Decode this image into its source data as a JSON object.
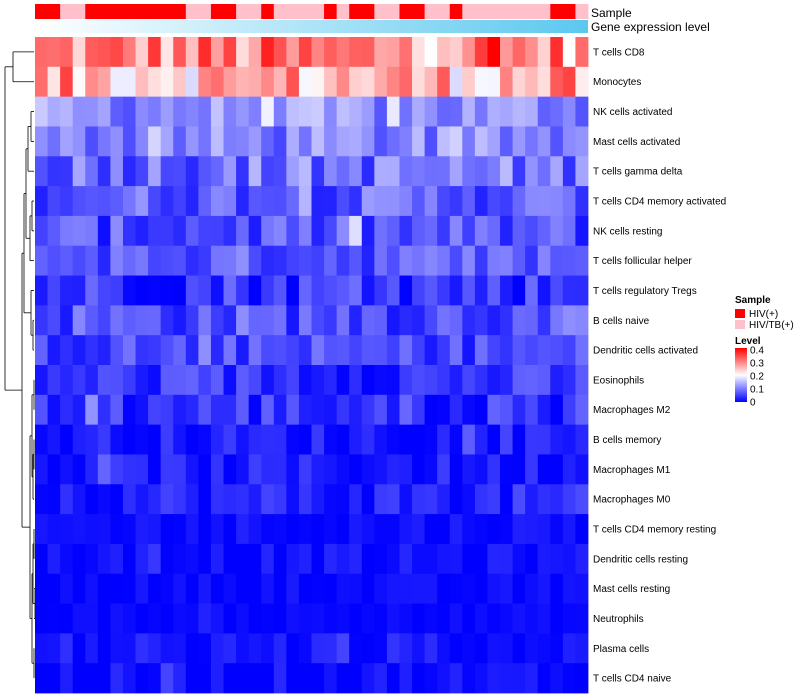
{
  "chart_data": {
    "type": "heatmap",
    "annotation_titles": {
      "sample": "Sample",
      "expression": "Gene expression level"
    },
    "rows": [
      "T cells CD8",
      "Monocytes",
      "NK cells activated",
      "Mast cells activated",
      "T cells gamma delta",
      "T cells CD4 memory activated",
      "NK cells resting",
      "T cells follicular helper",
      "T cells regulatory  Tregs",
      "B cells naive",
      "Dendritic cells activated",
      "Eosinophils",
      "Macrophages M2",
      "B cells memory",
      "Macrophages M1",
      "Macrophages M0",
      "T cells CD4 memory resting",
      "Dendritic cells resting",
      "Mast cells resting",
      "Neutrophils",
      "Plasma cells",
      "T cells CD4 naive"
    ],
    "n_columns": 44,
    "sample_groups": [
      1,
      1,
      0,
      0,
      1,
      1,
      1,
      1,
      1,
      1,
      1,
      1,
      0,
      0,
      1,
      1,
      0,
      0,
      1,
      0,
      0,
      0,
      0,
      1,
      0,
      1,
      1,
      0,
      0,
      1,
      1,
      0,
      0,
      1,
      0,
      0,
      0,
      0,
      0,
      0,
      0,
      1,
      1,
      0
    ],
    "legend": {
      "sample_title": "Sample",
      "sample_entries": [
        {
          "label": "HIV(+)",
          "color": "#ff0000"
        },
        {
          "label": "HIV/TB(+)",
          "color": "#ffc0cb"
        }
      ],
      "level_title": "Level",
      "level_ticks": [
        "0.4",
        "0.3",
        "0.2",
        "0.1",
        "0"
      ],
      "level_tick_values": [
        0.4,
        0.3,
        0.2,
        0.1,
        0
      ],
      "level_range": [
        0,
        0.4
      ]
    },
    "colors": {
      "low": "#0000ff",
      "mid": "#ffffff",
      "high": "#ff0000",
      "expr_start": "#ffffff",
      "expr_end": "#5bc8ef"
    },
    "row_levels": [
      {
        "mean": 0.29,
        "spread": 0.09
      },
      {
        "mean": 0.26,
        "spread": 0.09
      },
      {
        "mean": 0.11,
        "spread": 0.05
      },
      {
        "mean": 0.1,
        "spread": 0.05
      },
      {
        "mean": 0.09,
        "spread": 0.06
      },
      {
        "mean": 0.075,
        "spread": 0.05
      },
      {
        "mean": 0.06,
        "spread": 0.05
      },
      {
        "mean": 0.07,
        "spread": 0.045
      },
      {
        "mean": 0.045,
        "spread": 0.05
      },
      {
        "mean": 0.065,
        "spread": 0.05
      },
      {
        "mean": 0.055,
        "spread": 0.04
      },
      {
        "mean": 0.04,
        "spread": 0.04
      },
      {
        "mean": 0.04,
        "spread": 0.045
      },
      {
        "mean": 0.02,
        "spread": 0.03
      },
      {
        "mean": 0.02,
        "spread": 0.03
      },
      {
        "mean": 0.025,
        "spread": 0.035
      },
      {
        "mean": 0.01,
        "spread": 0.02
      },
      {
        "mean": 0.01,
        "spread": 0.02
      },
      {
        "mean": 0.005,
        "spread": 0.015
      },
      {
        "mean": 0.005,
        "spread": 0.01
      },
      {
        "mean": 0.012,
        "spread": 0.03
      },
      {
        "mean": 0.008,
        "spread": 0.025
      }
    ]
  }
}
